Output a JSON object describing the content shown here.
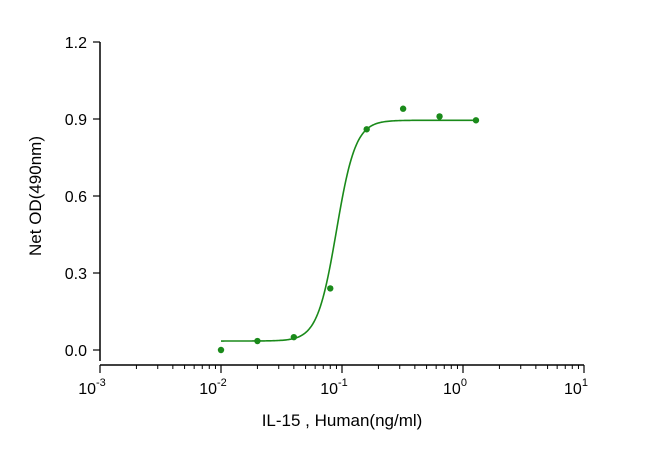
{
  "chart_data": {
    "type": "scatter",
    "title": "",
    "xlabel": "IL-15 , Human(ng/ml)",
    "ylabel": "Net OD(490nm)",
    "x_scale": "log",
    "xlim": [
      0.001,
      10
    ],
    "ylim": [
      0,
      1.2
    ],
    "grid": false,
    "x_ticks": [
      {
        "base": "10",
        "exp": "-3",
        "value": 0.001
      },
      {
        "base": "10",
        "exp": "-2",
        "value": 0.01
      },
      {
        "base": "10",
        "exp": "-1",
        "value": 0.1
      },
      {
        "base": "10",
        "exp": "0",
        "value": 1
      },
      {
        "base": "10",
        "exp": "1",
        "value": 10
      }
    ],
    "y_ticks": [
      {
        "label": "0.0",
        "value": 0
      },
      {
        "label": "0.3",
        "value": 0.3
      },
      {
        "label": "0.6",
        "value": 0.6
      },
      {
        "label": "0.9",
        "value": 0.9
      },
      {
        "label": "1.2",
        "value": 1.2
      }
    ],
    "color": "#1a8a1a",
    "series": [
      {
        "points": [
          {
            "x": 0.01,
            "y": 0.0
          },
          {
            "x": 0.02,
            "y": 0.035
          },
          {
            "x": 0.04,
            "y": 0.05
          },
          {
            "x": 0.08,
            "y": 0.24
          },
          {
            "x": 0.16,
            "y": 0.86
          },
          {
            "x": 0.32,
            "y": 0.94
          },
          {
            "x": 0.64,
            "y": 0.91
          },
          {
            "x": 1.28,
            "y": 0.895
          }
        ],
        "fit": {
          "model": "4PL",
          "bottom": 0.035,
          "top": 0.895,
          "ec50": 0.09,
          "hill": 5.5
        }
      }
    ]
  }
}
